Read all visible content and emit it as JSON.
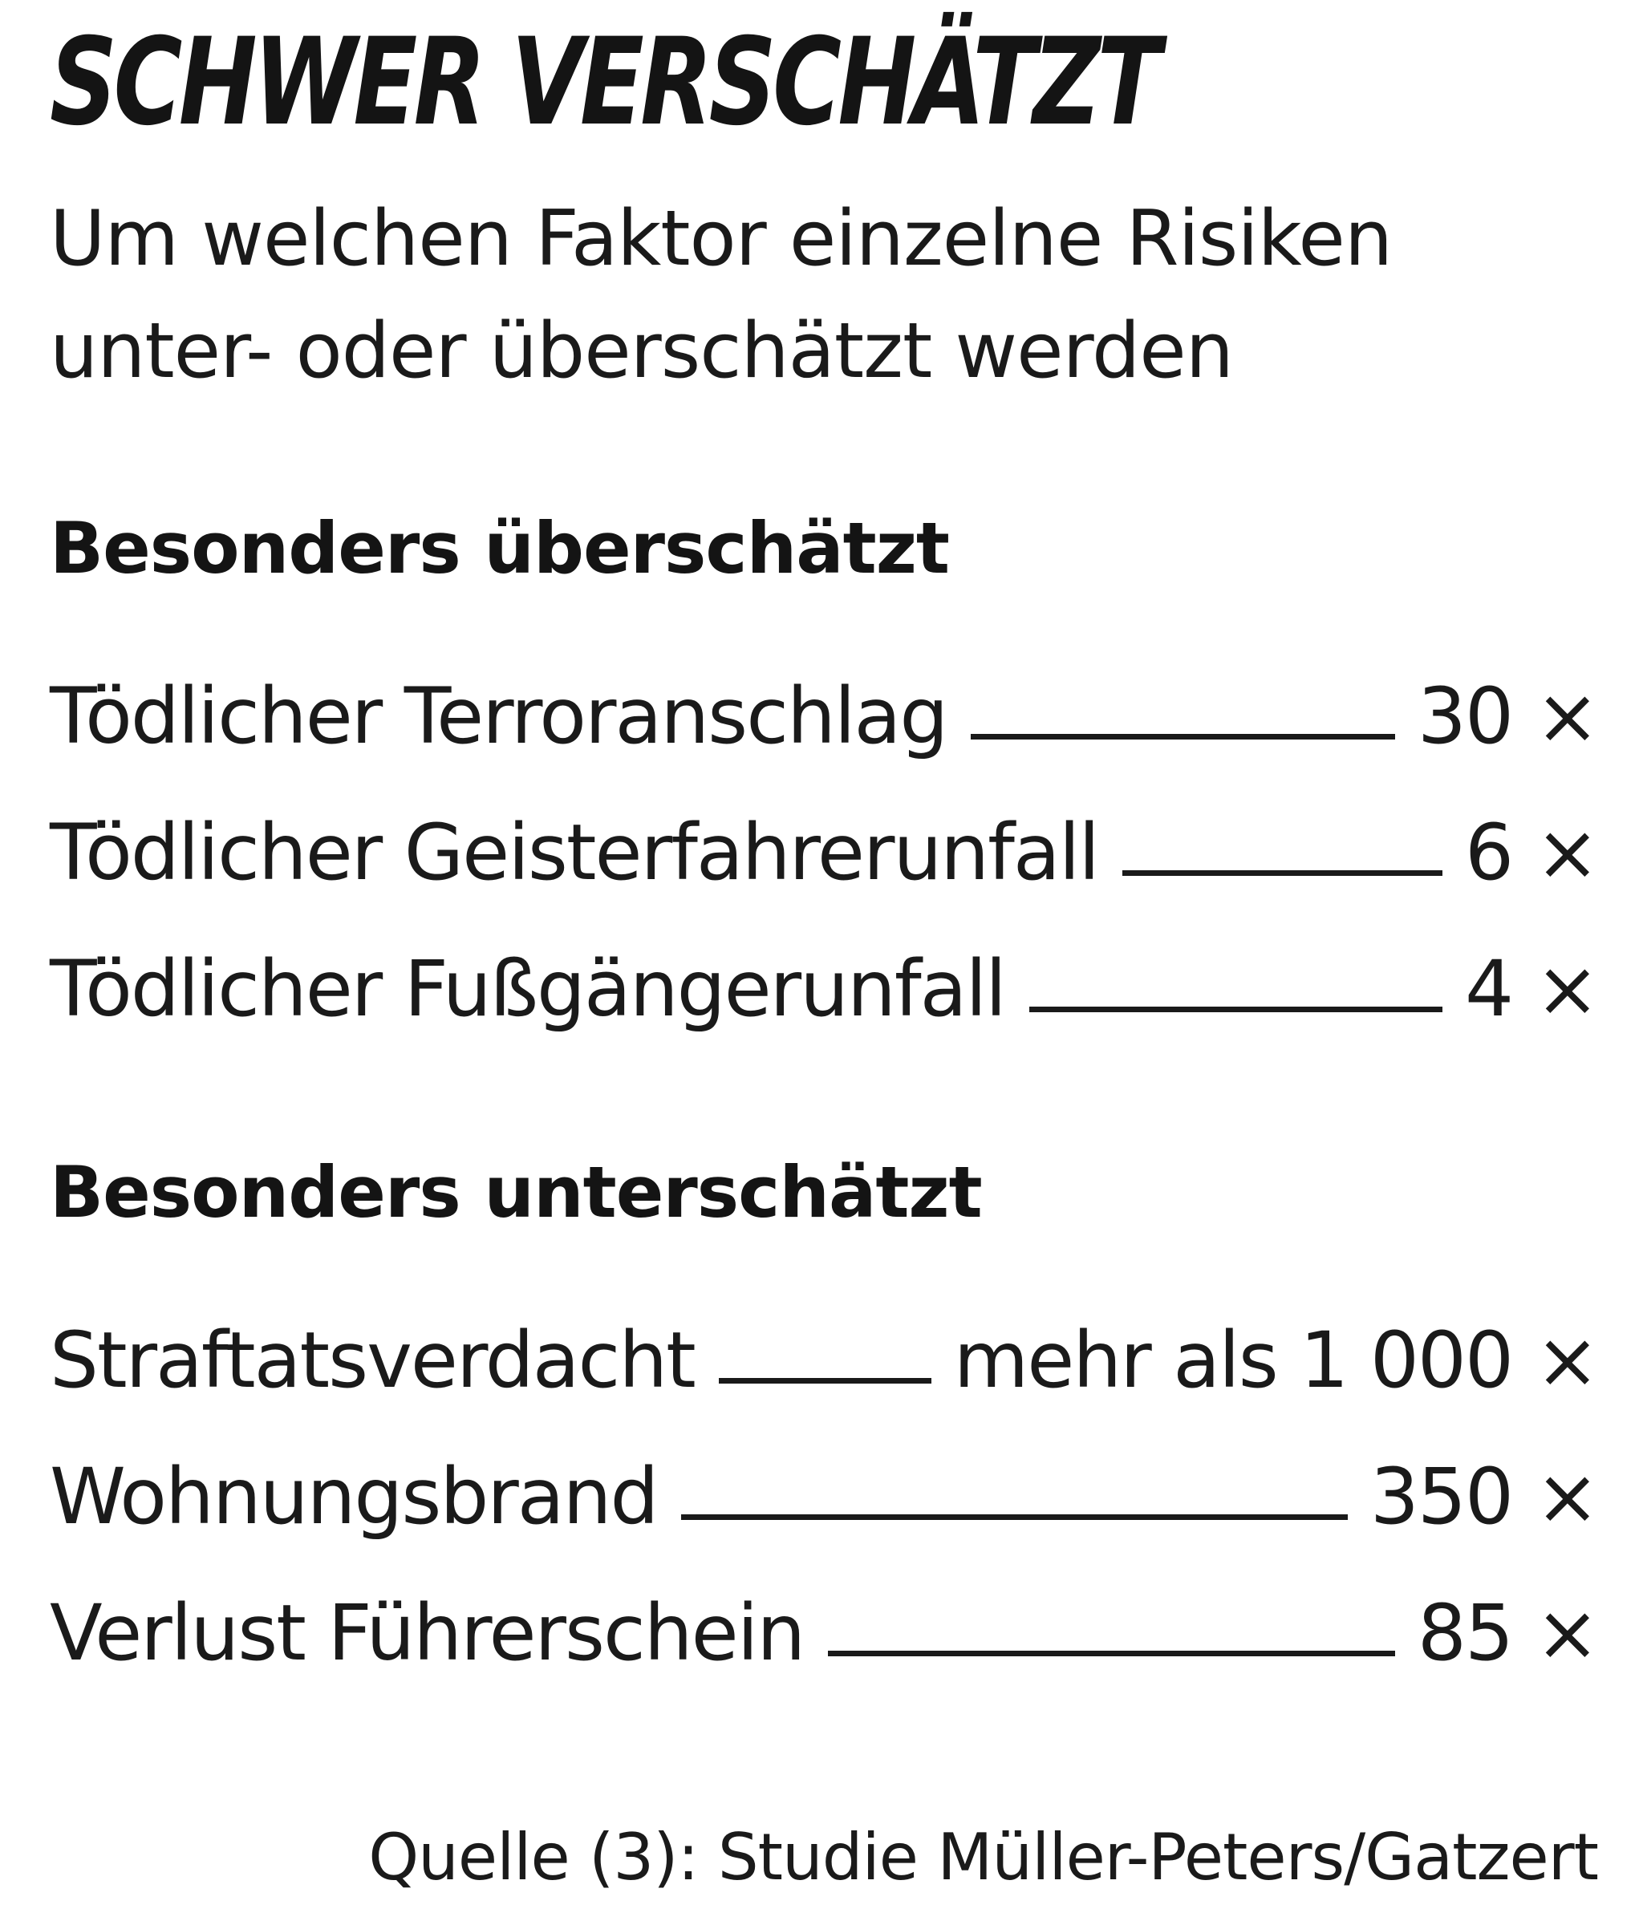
{
  "chart_data": {
    "type": "table",
    "title": "SCHWER VERSCHÄTZT",
    "subtitle_lines": [
      "Um welchen Faktor einzelne Risiken",
      "unter- oder überschätzt werden"
    ],
    "sections": [
      {
        "heading": "Besonders überschätzt",
        "rows": [
          {
            "label": "Tödlicher Terroranschlag",
            "value": "30 ×"
          },
          {
            "label": "Tödlicher Geisterfahrerunfall",
            "value": "6 ×"
          },
          {
            "label": "Tödlicher Fußgängerunfall",
            "value": "4 ×"
          }
        ]
      },
      {
        "heading": "Besonders unterschätzt",
        "rows": [
          {
            "label": "Straftatsverdacht",
            "value": "mehr als 1 000 ×"
          },
          {
            "label": "Wohnungsbrand",
            "value": "350 ×"
          },
          {
            "label": "Verlust Führerschein",
            "value": "85 ×"
          }
        ]
      }
    ],
    "source": "Quelle (3): Studie Müller-Peters/Gatzert"
  }
}
